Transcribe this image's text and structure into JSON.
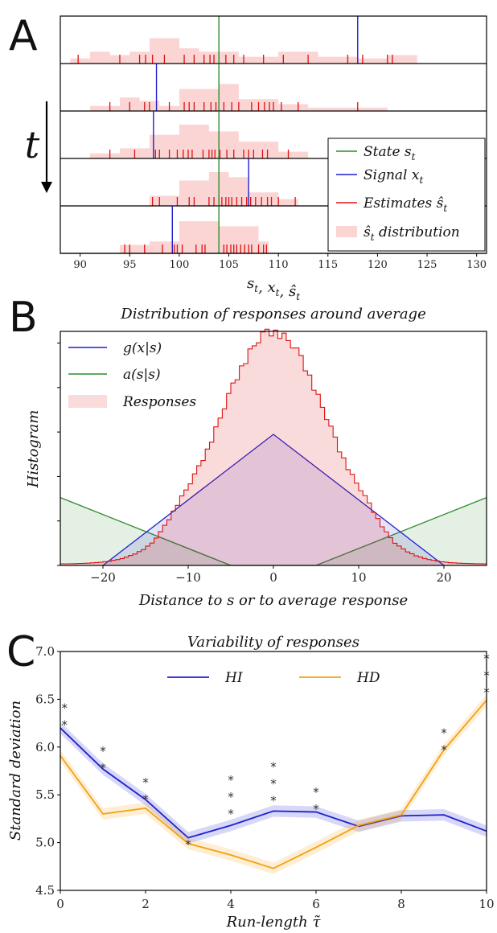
{
  "chart_data": [
    {
      "panel": "A",
      "type": "scatter",
      "xlabel": "s_t, x_t, ŝ_t",
      "time_label": "t",
      "xlim": [
        88,
        131
      ],
      "xticks": [
        90,
        95,
        100,
        105,
        110,
        115,
        120,
        125,
        130
      ],
      "legend": [
        "State s_t",
        "Signal x_t",
        "Estimates ŝ_t",
        "ŝ_t distribution"
      ],
      "legend_position": "lower right",
      "colors": {
        "state": "#2e8b2e",
        "signal": "#1f1fd1",
        "estimates": "#e01010",
        "distribution": "#fbd4d4"
      },
      "rows": [
        {
          "state": 104,
          "signal": 118,
          "estimates": [
            89.8,
            94,
            96,
            96.6,
            97.3,
            98.5,
            100.5,
            101.5,
            102.5,
            103.1,
            103.5,
            104,
            104.7,
            105.5,
            106.5,
            108.5,
            110.5,
            113,
            117,
            118.5,
            121,
            121.5
          ],
          "dist": [
            [
              89,
              91,
              0.15
            ],
            [
              91,
              93,
              0.35
            ],
            [
              93,
              95,
              0.25
            ],
            [
              95,
              97,
              0.35
            ],
            [
              97,
              100,
              0.75
            ],
            [
              100,
              102,
              0.45
            ],
            [
              102,
              106,
              0.35
            ],
            [
              106,
              110,
              0.2
            ],
            [
              110,
              114,
              0.35
            ],
            [
              114,
              118,
              0.2
            ],
            [
              118,
              121,
              0.15
            ],
            [
              121,
              124,
              0.25
            ]
          ]
        },
        {
          "state": 104,
          "signal": 97.7,
          "enabled": true,
          "estimates": [
            93,
            95,
            96.5,
            97,
            99,
            100.5,
            101,
            101.5,
            102.5,
            103.2,
            103.7,
            104.5,
            105.3,
            106,
            107.3,
            108,
            108.6,
            109.1,
            109.5,
            110.3,
            112,
            118
          ],
          "dist": [
            [
              91,
              94,
              0.15
            ],
            [
              94,
              96,
              0.4
            ],
            [
              96,
              98,
              0.3
            ],
            [
              98,
              100,
              0.15
            ],
            [
              100,
              104,
              0.65
            ],
            [
              104,
              106,
              0.8
            ],
            [
              106,
              110,
              0.35
            ],
            [
              110,
              113,
              0.2
            ],
            [
              113,
              121,
              0.1
            ]
          ]
        },
        {
          "state": 104,
          "signal": 97.4,
          "estimates": [
            93,
            95.5,
            97.6,
            98,
            99,
            99.8,
            100.4,
            100.9,
            101.3,
            102.4,
            103,
            103.3,
            103.6,
            104.1,
            104.8,
            105.5,
            106.5,
            107,
            107.5,
            108.4,
            108.9,
            111
          ],
          "dist": [
            [
              91,
              94,
              0.15
            ],
            [
              94,
              97,
              0.3
            ],
            [
              97,
              100,
              0.7
            ],
            [
              100,
              103,
              1.0
            ],
            [
              103,
              106,
              0.8
            ],
            [
              106,
              110,
              0.5
            ],
            [
              110,
              113,
              0.2
            ]
          ]
        },
        {
          "state": 104,
          "signal": 107,
          "estimates": [
            97.3,
            98,
            99.8,
            101,
            101.5,
            103,
            103.5,
            104,
            104.3,
            104.7,
            105,
            105.3,
            105.8,
            106.3,
            106.8,
            107.2,
            107.7,
            108.3,
            108.9,
            109.3,
            110,
            111.7
          ],
          "dist": [
            [
              97,
              100,
              0.3
            ],
            [
              100,
              103,
              0.75
            ],
            [
              103,
              105,
              1.0
            ],
            [
              105,
              107,
              0.85
            ],
            [
              107,
              110,
              0.4
            ],
            [
              110,
              112,
              0.2
            ]
          ]
        },
        {
          "state": 104,
          "signal": 99.3,
          "estimates": [
            94.5,
            95,
            96.5,
            98.3,
            99.5,
            99.8,
            100.3,
            101.7,
            102.3,
            102.6,
            104.5,
            104.8,
            105.2,
            105.5,
            105.8,
            106.2,
            106.6,
            107,
            107.3,
            108,
            108.5,
            108.8
          ],
          "dist": [
            [
              94,
              97,
              0.25
            ],
            [
              97,
              100,
              0.35
            ],
            [
              100,
              104,
              0.95
            ],
            [
              104,
              108,
              0.8
            ],
            [
              108,
              109,
              0.35
            ]
          ]
        }
      ]
    },
    {
      "panel": "B",
      "type": "area",
      "title": "Distribution of responses around average",
      "xlabel": "Distance to s_t or to average response",
      "ylabel": "Histogram",
      "xlim": [
        -25,
        25
      ],
      "xticks": [
        -20,
        -10,
        0,
        10,
        20
      ],
      "legend": [
        "g(x_t|s_t)",
        "a(s_{t+1}|s_t)",
        "Responses"
      ],
      "legend_position": "upper left",
      "colors": {
        "g": "#1f1fd1",
        "a": "#2e8b2e",
        "responses": "#e01010"
      },
      "g_triangle": {
        "support": [
          -20,
          20
        ],
        "peak": 0.56
      },
      "a_curve": {
        "zero_from": -5,
        "zero_to": 5,
        "value_at_edges": 0.29
      },
      "responses": {
        "type": "histogram",
        "peak": 0.99,
        "sd": 6.5,
        "bin_width": 0.5
      }
    },
    {
      "panel": "C",
      "type": "line",
      "title": "Variability of responses",
      "xlabel": "Run-length τ̃",
      "ylabel": "Standard deviation",
      "xlim": [
        0,
        10
      ],
      "ylim": [
        4.5,
        7.0
      ],
      "xticks": [
        0,
        2,
        4,
        6,
        8,
        10
      ],
      "yticks": [
        "4.5",
        "5.0",
        "5.5",
        "6.0",
        "6.5",
        "7.0"
      ],
      "legend_position": "upper center",
      "x": [
        0,
        1,
        2,
        3,
        4,
        5,
        6,
        7,
        8,
        9,
        10
      ],
      "series": [
        {
          "name": "HI",
          "color": "#1f1fd1",
          "values": [
            6.2,
            5.77,
            5.45,
            5.05,
            5.18,
            5.33,
            5.32,
            5.17,
            5.28,
            5.29,
            5.12
          ],
          "err": 0.06
        },
        {
          "name": "HD",
          "color": "#f5a00f",
          "values": [
            5.91,
            5.3,
            5.36,
            4.99,
            4.87,
            4.73,
            4.95,
            5.18,
            5.29,
            5.97,
            6.49
          ],
          "err": 0.06
        }
      ],
      "significance": [
        {
          "x": 0.1,
          "stars": 2,
          "y": 6.34
        },
        {
          "x": 1,
          "stars": 2,
          "y": 5.89
        },
        {
          "x": 2,
          "stars": 2,
          "y": 5.56
        },
        {
          "x": 3,
          "stars": 1,
          "y": 5.09
        },
        {
          "x": 4,
          "stars": 3,
          "y": 5.41
        },
        {
          "x": 5,
          "stars": 3,
          "y": 5.55
        },
        {
          "x": 6,
          "stars": 2,
          "y": 5.46
        },
        {
          "x": 9,
          "stars": 2,
          "y": 6.08
        },
        {
          "x": 10,
          "stars": 3,
          "y": 6.68
        }
      ]
    }
  ],
  "labels": {
    "A": "A",
    "B": "B",
    "C": "C"
  },
  "legend_text": {
    "A": [
      "State s",
      "Signal x",
      "Estimates ŝ",
      "ŝ distribution"
    ],
    "B": [
      "g(x|s)",
      "a(s|s)",
      "Responses"
    ],
    "C": [
      "HI",
      "HD"
    ]
  }
}
